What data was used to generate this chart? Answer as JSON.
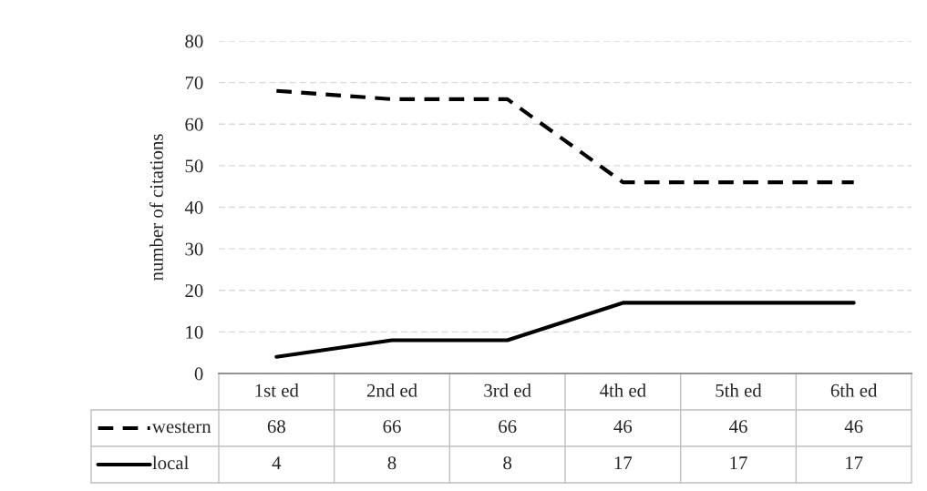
{
  "chart_data": {
    "type": "line",
    "ylabel": "number of citations",
    "categories": [
      "1st ed",
      "2nd ed",
      "3rd ed",
      "4th ed",
      "5th ed",
      "6th ed"
    ],
    "series": [
      {
        "name": "western",
        "color": "#000000",
        "line_style": "dashed",
        "values": [
          68,
          66,
          66,
          46,
          46,
          46
        ]
      },
      {
        "name": "local",
        "color": "#000000",
        "line_style": "solid",
        "values": [
          4,
          8,
          8,
          17,
          17,
          17
        ]
      }
    ],
    "ylim": [
      0,
      80
    ],
    "yticks": [
      0,
      10,
      20,
      30,
      40,
      50,
      60,
      70,
      80
    ],
    "grid": "y",
    "data_labels": true,
    "legend": "bottom"
  }
}
